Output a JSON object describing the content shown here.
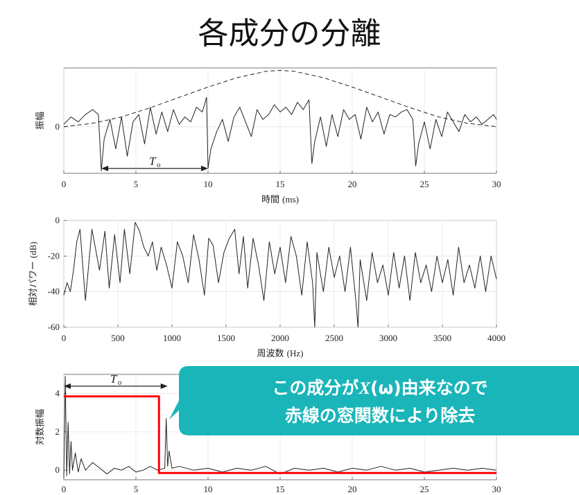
{
  "slide": {
    "title": "各成分の分離"
  },
  "chart_data": [
    {
      "type": "line",
      "ylabel": "振幅",
      "xlabel": "時間",
      "xlabel_unit": "(ms)",
      "xlim": [
        0,
        30
      ],
      "x_ticks": [
        "0",
        "5",
        "10",
        "15",
        "20",
        "25",
        "30"
      ],
      "y_ticks": [
        "0"
      ],
      "grid": true,
      "annotation": {
        "label": "T",
        "sub": "o",
        "x_start": 2.6,
        "x_end": 10
      },
      "series": [
        {
          "style": "solid",
          "x": [
            0,
            0.5,
            1,
            1.5,
            2,
            2.4,
            2.6,
            2.8,
            3.2,
            3.6,
            4,
            4.4,
            4.8,
            5.2,
            5.6,
            6,
            6.4,
            6.8,
            7.2,
            7.6,
            8,
            8.4,
            8.8,
            9.2,
            9.6,
            9.9,
            10,
            10.2,
            10.6,
            11,
            11.4,
            11.8,
            12.2,
            12.6,
            13,
            13.4,
            13.8,
            14.2,
            14.6,
            15,
            15.4,
            15.8,
            16.2,
            16.6,
            17,
            17.2,
            17.4,
            17.8,
            18.2,
            18.6,
            19,
            19.4,
            19.8,
            20.2,
            20.6,
            21,
            21.4,
            21.8,
            22.2,
            22.6,
            23,
            23.4,
            23.8,
            24.2,
            24.4,
            24.6,
            25,
            25.4,
            25.8,
            26.2,
            26.6,
            27,
            27.4,
            27.8,
            28.2,
            28.6,
            29,
            29.4,
            29.8,
            30
          ],
          "y": [
            0.1,
            0.4,
            0.2,
            0.5,
            0.7,
            0.5,
            -1.8,
            -0.5,
            0.3,
            -0.9,
            0.4,
            -1.2,
            0.2,
            0.5,
            -0.7,
            0.8,
            -0.3,
            0.6,
            -0.2,
            0.7,
            0.1,
            0.4,
            0.2,
            0.8,
            0.6,
            1.2,
            -1.7,
            -0.9,
            -0.2,
            0.3,
            -0.6,
            0.4,
            0.8,
            0.2,
            -0.4,
            0.7,
            0.3,
            0.5,
            0.9,
            0.6,
            0.8,
            0.5,
            1.0,
            0.7,
            1.1,
            -1.5,
            -0.6,
            0.4,
            -0.8,
            0.5,
            -0.4,
            0.7,
            0.3,
            0.5,
            -0.5,
            0.8,
            0.2,
            0.6,
            -0.3,
            0.5,
            0.4,
            0.6,
            0.7,
            0.3,
            -1.6,
            -0.7,
            0.2,
            -0.9,
            0.3,
            -0.4,
            0.6,
            0.2,
            -0.2,
            0.5,
            0.2,
            0.4,
            0.1,
            0.3,
            0.5,
            0.3
          ]
        },
        {
          "style": "dashed",
          "x": [
            0,
            2,
            4,
            6,
            8,
            10,
            12,
            14,
            15,
            16,
            18,
            20,
            22,
            24,
            26,
            28,
            30
          ],
          "y": [
            0,
            0.14,
            0.4,
            0.78,
            1.2,
            1.62,
            2.0,
            2.26,
            2.3,
            2.26,
            2.0,
            1.62,
            1.2,
            0.78,
            0.4,
            0.14,
            0
          ]
        }
      ]
    },
    {
      "type": "line",
      "ylabel": "相対パワー",
      "ylabel_unit": "(dB)",
      "xlabel": "周波数",
      "xlabel_unit": "(Hz)",
      "xlim": [
        0,
        4000
      ],
      "ylim": [
        -60,
        0
      ],
      "x_ticks": [
        "0",
        "500",
        "1000",
        "1500",
        "2000",
        "2500",
        "3000",
        "3500",
        "4000"
      ],
      "y_ticks": [
        "0",
        "-20",
        "-40",
        "-60"
      ],
      "grid": true,
      "series": [
        {
          "style": "solid",
          "x": [
            0,
            30,
            60,
            90,
            120,
            150,
            200,
            260,
            330,
            380,
            420,
            470,
            520,
            560,
            610,
            660,
            700,
            740,
            780,
            820,
            860,
            900,
            950,
            1000,
            1050,
            1100,
            1150,
            1200,
            1250,
            1300,
            1340,
            1380,
            1430,
            1480,
            1530,
            1580,
            1620,
            1660,
            1700,
            1750,
            1800,
            1850,
            1900,
            1950,
            2000,
            2050,
            2100,
            2150,
            2200,
            2250,
            2300,
            2320,
            2340,
            2400,
            2450,
            2500,
            2550,
            2600,
            2650,
            2700,
            2720,
            2740,
            2800,
            2850,
            2900,
            2950,
            3000,
            3050,
            3100,
            3150,
            3200,
            3250,
            3300,
            3350,
            3400,
            3450,
            3500,
            3550,
            3600,
            3650,
            3700,
            3750,
            3800,
            3850,
            3900,
            3950,
            4000
          ],
          "y": [
            -42,
            -35,
            -40,
            -28,
            -12,
            -5,
            -45,
            -5,
            -28,
            -6,
            -38,
            -8,
            -35,
            -5,
            -30,
            -1,
            -6,
            -15,
            -20,
            -12,
            -28,
            -15,
            -25,
            -38,
            -12,
            -20,
            -35,
            -8,
            -22,
            -42,
            -10,
            -14,
            -35,
            -18,
            -10,
            -5,
            -30,
            -9,
            -38,
            -10,
            -25,
            -45,
            -12,
            -30,
            -15,
            -35,
            -9,
            -20,
            -42,
            -12,
            -35,
            -60,
            -18,
            -40,
            -15,
            -32,
            -20,
            -40,
            -15,
            -45,
            -60,
            -22,
            -45,
            -18,
            -35,
            -25,
            -42,
            -18,
            -38,
            -20,
            -45,
            -18,
            -35,
            -25,
            -40,
            -20,
            -35,
            -22,
            -42,
            -15,
            -35,
            -25,
            -38,
            -20,
            -40,
            -20,
            -33
          ]
        }
      ]
    },
    {
      "type": "line",
      "ylabel": "対数振幅",
      "xlim": [
        0,
        30
      ],
      "ylim": [
        -0.5,
        5
      ],
      "x_ticks": [
        "0",
        "5",
        "10",
        "15",
        "20",
        "25",
        "30"
      ],
      "y_ticks": [
        "4",
        "2",
        "0"
      ],
      "grid": true,
      "annotation": {
        "label": "T",
        "sub": "o",
        "x_start": 0,
        "x_end": 7.2
      },
      "series": [
        {
          "style": "solid",
          "color": "#222222",
          "x": [
            0,
            0.1,
            0.2,
            0.3,
            0.4,
            0.5,
            0.6,
            0.8,
            1,
            1.2,
            1.5,
            2,
            2.5,
            3,
            3.5,
            4,
            4.5,
            5,
            5.5,
            6,
            6.5,
            7,
            7.1,
            7.2,
            7.3,
            7.5,
            8,
            9,
            10,
            11,
            12,
            13,
            14,
            15,
            16,
            17,
            18,
            19,
            20,
            21,
            22,
            23,
            24,
            25,
            26,
            27,
            28,
            29,
            30
          ],
          "y": [
            -0.4,
            4.9,
            -0.3,
            2.5,
            -0.2,
            1.5,
            0,
            0.9,
            -0.1,
            0.6,
            0,
            0.4,
            0.1,
            -0.2,
            0.1,
            0,
            0.2,
            -0.1,
            0,
            0.2,
            0,
            0.1,
            2.7,
            0.2,
            1.0,
            0.1,
            0.2,
            0,
            0.1,
            -0.1,
            0.1,
            0,
            0.2,
            -0.2,
            0.1,
            0,
            0.1,
            -0.1,
            0.1,
            0,
            0.2,
            0,
            0.1,
            -0.1,
            0,
            0.1,
            0,
            0.1,
            0
          ]
        },
        {
          "style": "solid",
          "color": "#ff0000",
          "x": [
            0,
            6.6,
            6.6,
            30
          ],
          "y": [
            3.85,
            3.85,
            -0.15,
            -0.15
          ]
        }
      ]
    }
  ],
  "callout": {
    "line1_pre": "この成分が",
    "line1_var": "X",
    "line1_paren": "(ω)",
    "line1_post": "由来なので",
    "line2": "赤線の窓関数により除去",
    "color": "#19b5b9"
  }
}
